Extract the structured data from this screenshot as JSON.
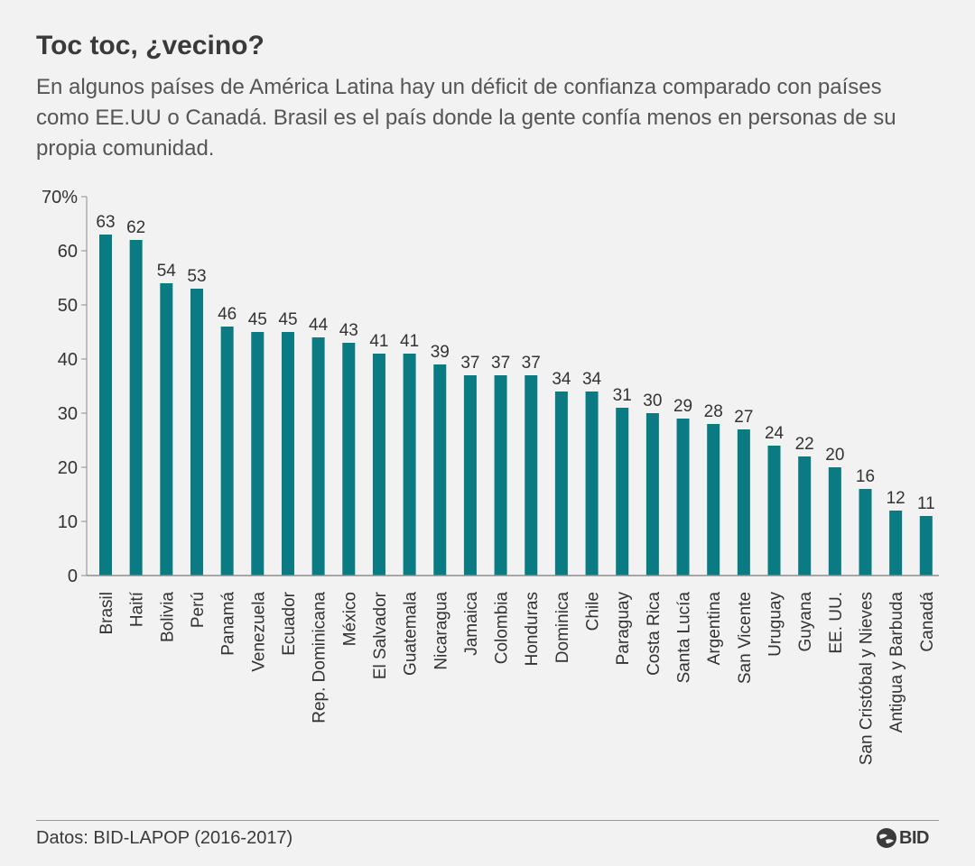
{
  "chart_data": {
    "type": "bar",
    "title": "Toc toc, ¿vecino?",
    "subtitle": "En algunos países de América Latina hay un déficit de confianza comparado con países como EE.UU o Canadá. Brasil es el país donde la gente confía menos en personas de su propia comunidad.",
    "categories": [
      "Brasil",
      "Haití",
      "Bolivia",
      "Perú",
      "Panamá",
      "Venezuela",
      "Ecuador",
      "Rep. Dominicana",
      "México",
      "El Salvador",
      "Guatemala",
      "Nicaragua",
      "Jamaica",
      "Colombia",
      "Honduras",
      "Dominica",
      "Chile",
      "Paraguay",
      "Costa Rica",
      "Santa Lucía",
      "Argentina",
      "San Vicente",
      "Uruguay",
      "Guyana",
      "EE. UU.",
      "San Cristóbal y Nieves",
      "Antigua y Barbuda",
      "Canadá"
    ],
    "values": [
      63,
      62,
      54,
      53,
      46,
      45,
      45,
      44,
      43,
      41,
      41,
      39,
      37,
      37,
      37,
      34,
      34,
      31,
      30,
      29,
      28,
      27,
      24,
      22,
      20,
      16,
      12,
      11
    ],
    "ylim": [
      0,
      70
    ],
    "yticks": [
      0,
      10,
      20,
      30,
      40,
      50,
      60,
      70
    ],
    "ytick_labels": [
      "0",
      "10",
      "20",
      "30",
      "40",
      "50",
      "60",
      "70%"
    ],
    "xlabel": "",
    "ylabel": "",
    "grid": false,
    "bar_color": "#0a7b83"
  },
  "footer": {
    "source": "Datos: BID-LAPOP (2016-2017)",
    "logo_text": "BID"
  }
}
